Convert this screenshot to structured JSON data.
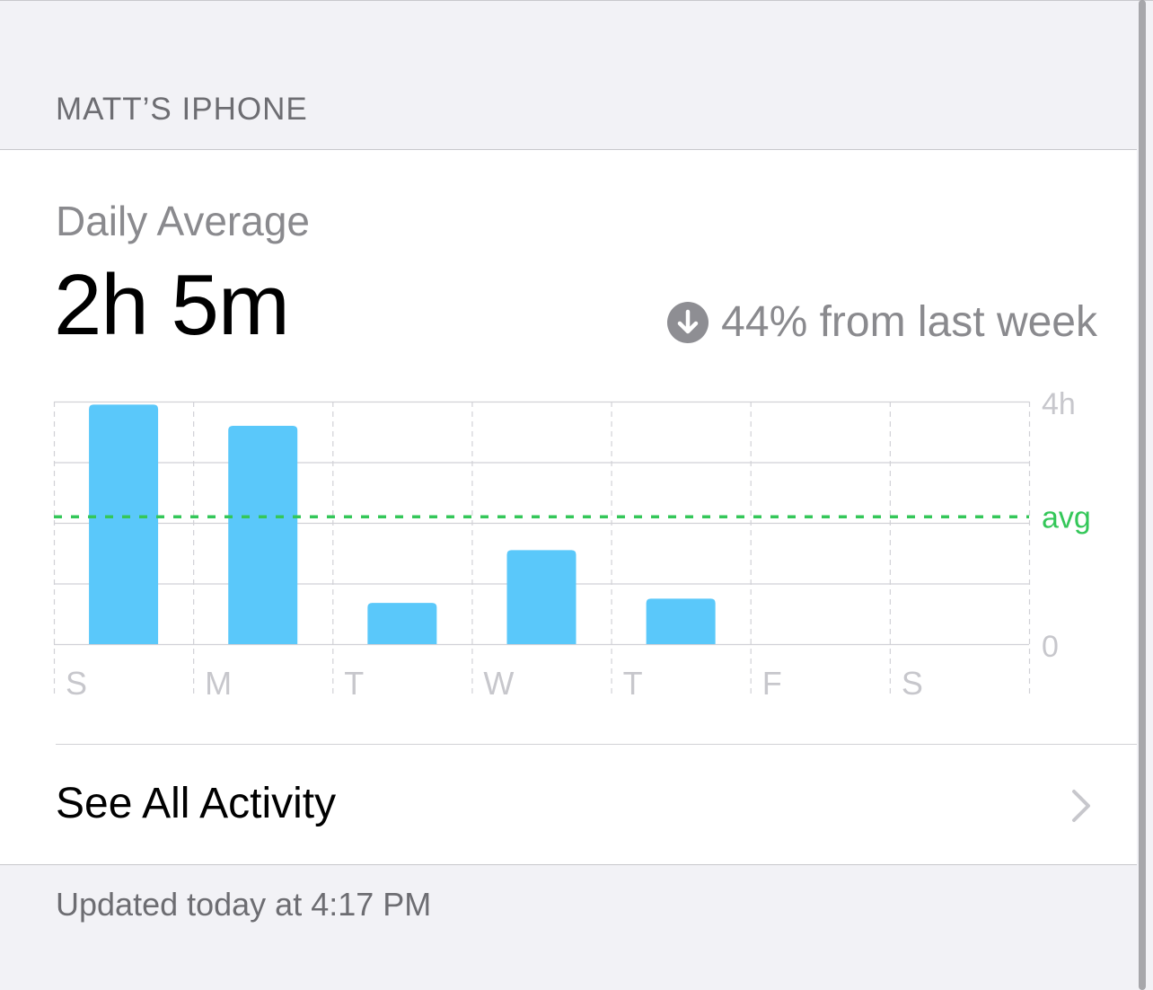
{
  "device": {
    "section_title": "MATT’S IPHONE"
  },
  "summary": {
    "label": "Daily Average",
    "value": "2h 5m",
    "change_text": "44% from last week",
    "change_icon": "arrow-down-circle-icon"
  },
  "chart_data": {
    "type": "bar",
    "categories": [
      "S",
      "M",
      "T",
      "W",
      "T",
      "F",
      "S"
    ],
    "values_hours": [
      3.95,
      3.6,
      0.68,
      1.55,
      0.75,
      0,
      0
    ],
    "ylim": [
      0,
      4
    ],
    "y_tick_labels": {
      "max": "4h",
      "min": "0"
    },
    "average_label": "avg",
    "average_hours": 2.1,
    "grid": true,
    "colors": {
      "bar": "#5ac8fa",
      "average": "#34c759",
      "grid": "#d1d1d6",
      "label": "#c7c7cc"
    }
  },
  "actions": {
    "see_all_label": "See All Activity"
  },
  "footer": {
    "updated_text": "Updated today at 4:17 PM"
  }
}
